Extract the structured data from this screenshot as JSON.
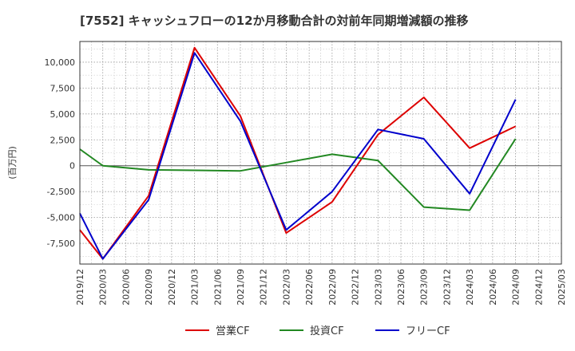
{
  "chart_data": {
    "type": "line",
    "title": "[7552]  キャッシュフローの12か月移動合計の対前年同期増減額の推移",
    "ylabel": "(百万円)",
    "xlabel": "",
    "ylim": [
      -9500,
      12000
    ],
    "yticks": [
      10000,
      7500,
      5000,
      2500,
      0,
      -2500,
      -5000,
      -7500
    ],
    "ytick_labels": [
      "10,000",
      "7,500",
      "5,000",
      "2,500",
      "0",
      "-2,500",
      "-5,000",
      "-7,500"
    ],
    "x_labels": [
      "2019/12",
      "2020/03",
      "2020/06",
      "2020/09",
      "2020/12",
      "2021/03",
      "2021/06",
      "2021/09",
      "2021/12",
      "2022/03",
      "2022/06",
      "2022/09",
      "2022/12",
      "2023/03",
      "2023/06",
      "2023/09",
      "2023/12",
      "2024/03",
      "2024/06",
      "2024/09",
      "2024/12",
      "2025/03"
    ],
    "grid": true,
    "legend_position": "bottom",
    "series": [
      {
        "name": "営業CF",
        "color": "#dd0000",
        "points": [
          [
            "2019/12",
            -6200
          ],
          [
            "2020/03",
            -9000
          ],
          [
            "2020/09",
            -2900
          ],
          [
            "2021/03",
            11400
          ],
          [
            "2021/09",
            4800
          ],
          [
            "2022/03",
            -6500
          ],
          [
            "2022/09",
            -3500
          ],
          [
            "2023/03",
            3000
          ],
          [
            "2023/09",
            6600
          ],
          [
            "2024/03",
            1700
          ],
          [
            "2024/09",
            3800
          ]
        ]
      },
      {
        "name": "投資CF",
        "color": "#228822",
        "points": [
          [
            "2019/12",
            1600
          ],
          [
            "2020/03",
            0
          ],
          [
            "2020/09",
            -400
          ],
          [
            "2021/09",
            -500
          ],
          [
            "2022/03",
            300
          ],
          [
            "2022/09",
            1100
          ],
          [
            "2023/03",
            500
          ],
          [
            "2023/09",
            -4000
          ],
          [
            "2024/03",
            -4300
          ],
          [
            "2024/09",
            2600
          ]
        ]
      },
      {
        "name": "フリーCF",
        "color": "#0000cc",
        "points": [
          [
            "2019/12",
            -4600
          ],
          [
            "2020/03",
            -9000
          ],
          [
            "2020/09",
            -3300
          ],
          [
            "2021/03",
            10900
          ],
          [
            "2021/09",
            4300
          ],
          [
            "2022/03",
            -6200
          ],
          [
            "2022/09",
            -2500
          ],
          [
            "2023/03",
            3500
          ],
          [
            "2023/09",
            2600
          ],
          [
            "2024/03",
            -2700
          ],
          [
            "2024/09",
            6400
          ]
        ]
      }
    ]
  }
}
